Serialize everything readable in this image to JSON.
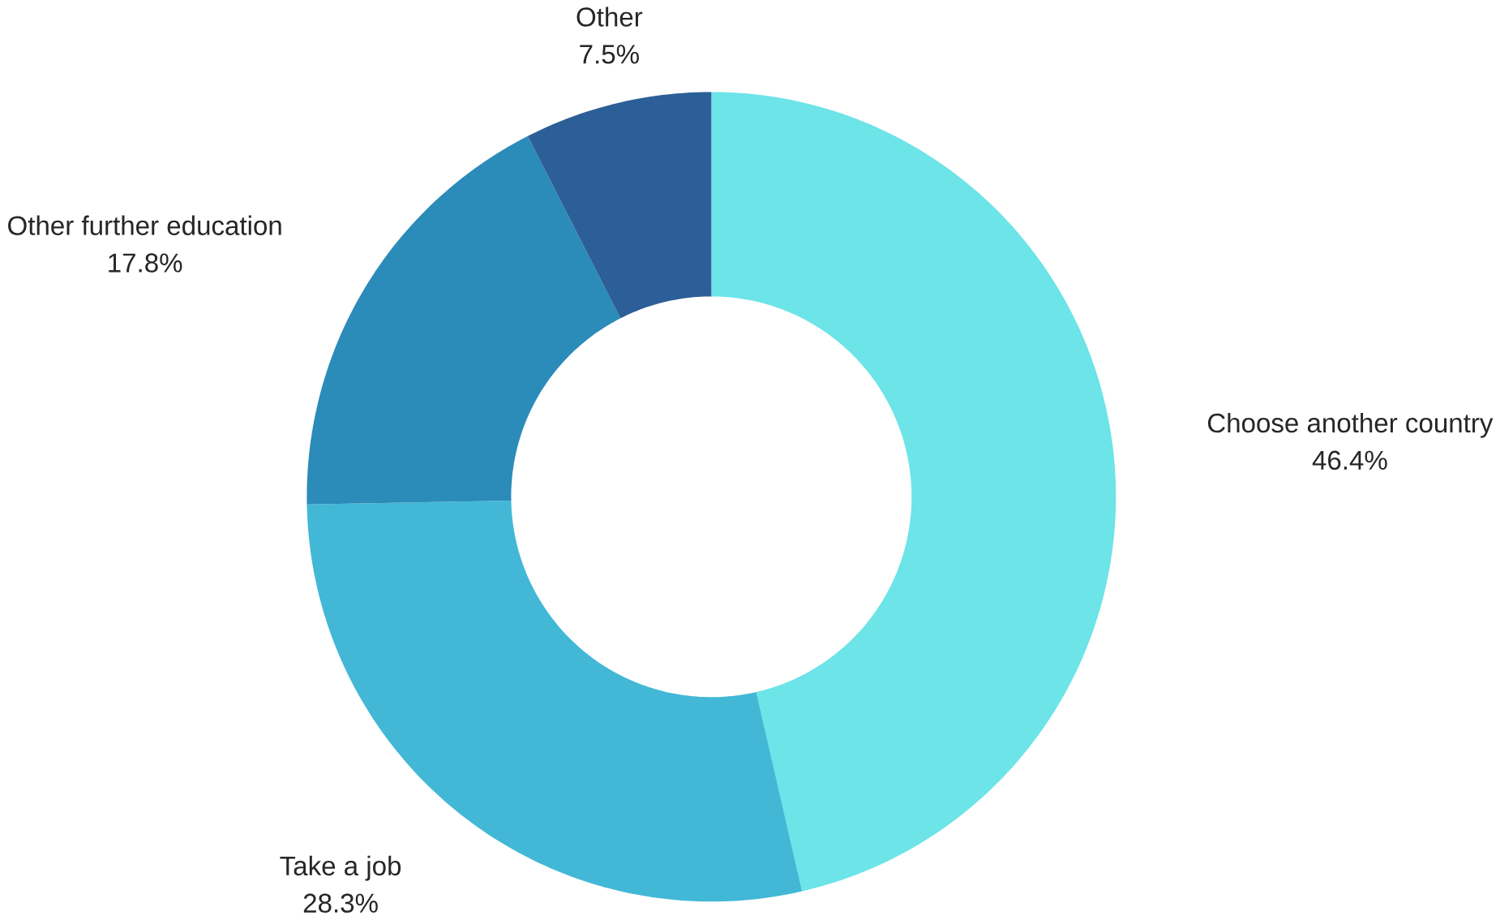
{
  "chart_data": {
    "type": "donut",
    "categories": [
      "Choose another country",
      "Take a job",
      "Other further education",
      "Other"
    ],
    "values": [
      46.4,
      28.3,
      17.8,
      7.5
    ],
    "value_labels": [
      "46.4%",
      "28.3%",
      "17.8%",
      "7.5%"
    ],
    "colors": [
      "#6ce4e8",
      "#42b8d6",
      "#2b8bb9",
      "#2c5f98"
    ],
    "legend": false
  }
}
